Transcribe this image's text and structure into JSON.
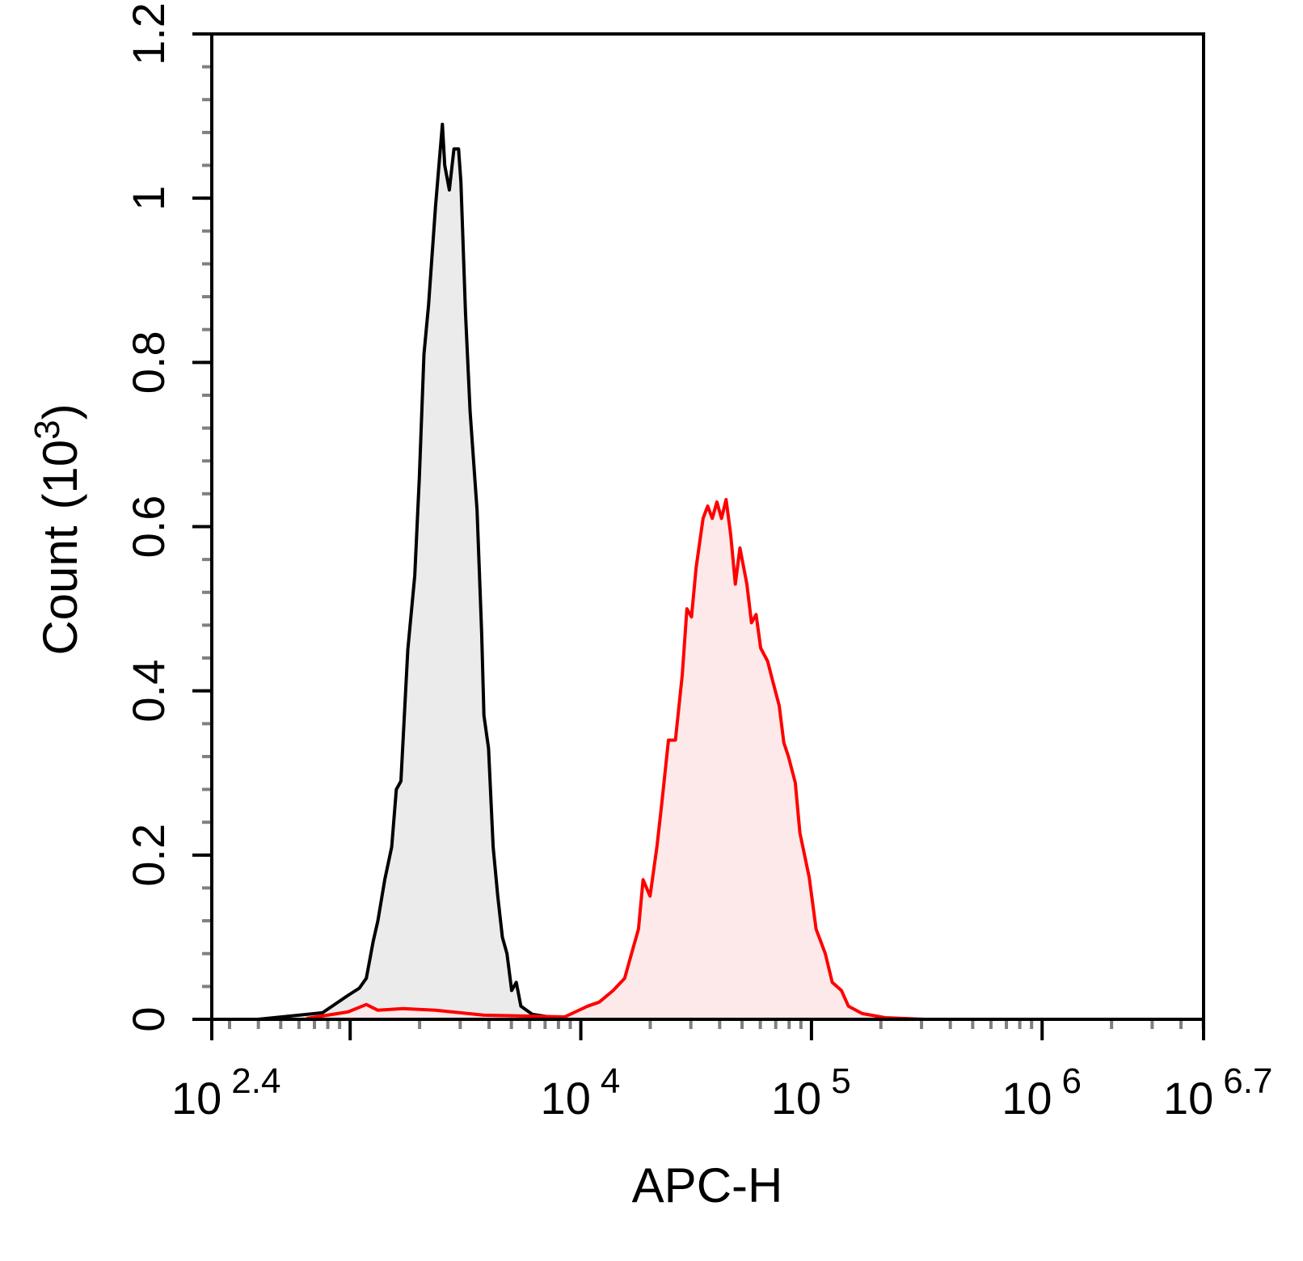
{
  "chart_data": {
    "type": "area",
    "xlabel": "APC-H",
    "ylabel": "Count",
    "ylabel_unit_base": "10",
    "ylabel_unit_exp": "3",
    "x_scale": "log10",
    "xlim_log10": [
      2.4,
      6.7
    ],
    "ylim": [
      0,
      1.2
    ],
    "grid": false,
    "x_ticks": [
      {
        "base": "10",
        "exp": "2.4",
        "log": 2.4
      },
      {
        "base": "",
        "exp": "",
        "log": 3
      },
      {
        "base": "10",
        "exp": "4",
        "log": 4
      },
      {
        "base": "10",
        "exp": "5",
        "log": 5
      },
      {
        "base": "10",
        "exp": "6",
        "log": 6
      },
      {
        "base": "10",
        "exp": "6.7",
        "log": 6.7
      }
    ],
    "y_ticks": [
      {
        "label": "0",
        "value": 0
      },
      {
        "label": "0.2",
        "value": 0.2
      },
      {
        "label": "0.4",
        "value": 0.4
      },
      {
        "label": "0.6",
        "value": 0.6
      },
      {
        "label": "0.8",
        "value": 0.8
      },
      {
        "label": "1",
        "value": 1.0
      },
      {
        "label": "1.2",
        "value": 1.2
      }
    ],
    "series": [
      {
        "color": "#000000",
        "fill": "#ebebeb",
        "points_log10x_count": [
          [
            2.6,
            0
          ],
          [
            2.88,
            0.008
          ],
          [
            2.99,
            0.029
          ],
          [
            3.04,
            0.038
          ],
          [
            3.07,
            0.05
          ],
          [
            3.1,
            0.095
          ],
          [
            3.12,
            0.12
          ],
          [
            3.15,
            0.17
          ],
          [
            3.18,
            0.21
          ],
          [
            3.2,
            0.28
          ],
          [
            3.22,
            0.29
          ],
          [
            3.25,
            0.45
          ],
          [
            3.28,
            0.54
          ],
          [
            3.3,
            0.66
          ],
          [
            3.32,
            0.81
          ],
          [
            3.34,
            0.87
          ],
          [
            3.37,
            0.99
          ],
          [
            3.4,
            1.09
          ],
          [
            3.41,
            1.04
          ],
          [
            3.43,
            1.01
          ],
          [
            3.45,
            1.06
          ],
          [
            3.47,
            1.06
          ],
          [
            3.48,
            1.02
          ],
          [
            3.5,
            0.86
          ],
          [
            3.52,
            0.74
          ],
          [
            3.55,
            0.62
          ],
          [
            3.57,
            0.47
          ],
          [
            3.58,
            0.37
          ],
          [
            3.6,
            0.33
          ],
          [
            3.62,
            0.21
          ],
          [
            3.64,
            0.15
          ],
          [
            3.66,
            0.1
          ],
          [
            3.68,
            0.08
          ],
          [
            3.7,
            0.035
          ],
          [
            3.72,
            0.045
          ],
          [
            3.74,
            0.016
          ],
          [
            3.79,
            0.006
          ],
          [
            3.93,
            0
          ]
        ]
      },
      {
        "color": "#ff0000",
        "fill": "#fde9e9",
        "points_log10x_count": [
          [
            2.81,
            0.001
          ],
          [
            2.99,
            0.009
          ],
          [
            3.07,
            0.018
          ],
          [
            3.12,
            0.011
          ],
          [
            3.23,
            0.013
          ],
          [
            3.37,
            0.011
          ],
          [
            3.58,
            0.005
          ],
          [
            3.93,
            0.003
          ],
          [
            4.03,
            0.016
          ],
          [
            4.08,
            0.021
          ],
          [
            4.14,
            0.035
          ],
          [
            4.19,
            0.05
          ],
          [
            4.22,
            0.08
          ],
          [
            4.25,
            0.11
          ],
          [
            4.27,
            0.17
          ],
          [
            4.3,
            0.15
          ],
          [
            4.33,
            0.21
          ],
          [
            4.35,
            0.26
          ],
          [
            4.38,
            0.34
          ],
          [
            4.41,
            0.34
          ],
          [
            4.44,
            0.42
          ],
          [
            4.46,
            0.5
          ],
          [
            4.48,
            0.49
          ],
          [
            4.5,
            0.55
          ],
          [
            4.53,
            0.61
          ],
          [
            4.55,
            0.625
          ],
          [
            4.57,
            0.61
          ],
          [
            4.59,
            0.63
          ],
          [
            4.61,
            0.61
          ],
          [
            4.63,
            0.633
          ],
          [
            4.65,
            0.59
          ],
          [
            4.67,
            0.53
          ],
          [
            4.69,
            0.574
          ],
          [
            4.72,
            0.53
          ],
          [
            4.74,
            0.483
          ],
          [
            4.76,
            0.493
          ],
          [
            4.78,
            0.452
          ],
          [
            4.81,
            0.436
          ],
          [
            4.83,
            0.414
          ],
          [
            4.86,
            0.382
          ],
          [
            4.88,
            0.337
          ],
          [
            4.9,
            0.32
          ],
          [
            4.93,
            0.288
          ],
          [
            4.95,
            0.227
          ],
          [
            4.99,
            0.173
          ],
          [
            5.02,
            0.11
          ],
          [
            5.06,
            0.08
          ],
          [
            5.09,
            0.045
          ],
          [
            5.13,
            0.035
          ],
          [
            5.16,
            0.016
          ],
          [
            5.22,
            0.007
          ],
          [
            5.32,
            0.002
          ],
          [
            5.49,
            0
          ]
        ]
      }
    ]
  }
}
